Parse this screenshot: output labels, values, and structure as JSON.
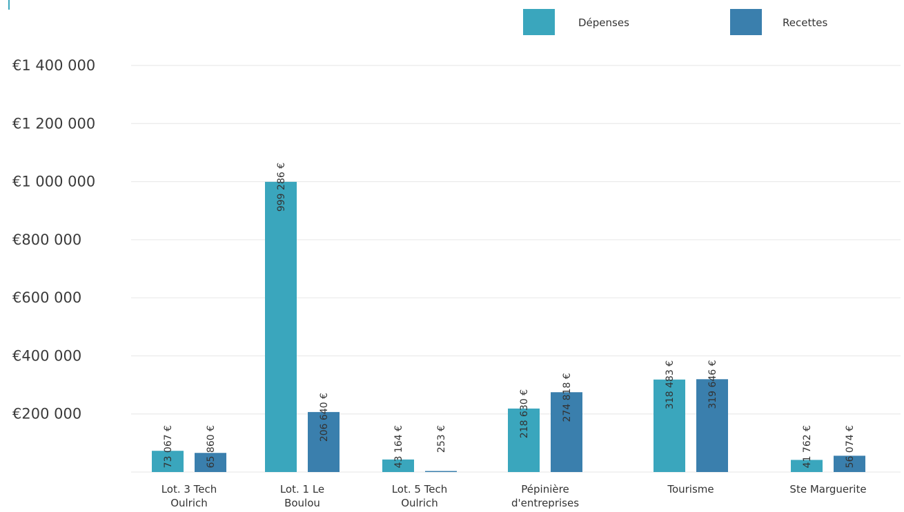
{
  "chart_data": {
    "type": "bar",
    "categories": [
      [
        "Lot. 3 Tech",
        "Oulrich"
      ],
      [
        "Lot. 1  Le",
        "Boulou"
      ],
      [
        "Lot. 5 Tech",
        "Oulrich"
      ],
      [
        "Pépinière",
        "d'entreprises"
      ],
      [
        "Tourisme"
      ],
      [
        "Ste Marguerite"
      ]
    ],
    "series": [
      {
        "name": "Dépenses",
        "color": "#3aa6bd",
        "values": [
          73067,
          999286,
          43164,
          218630,
          318483,
          41762
        ],
        "labels": [
          "73 067 €",
          "999 286 €",
          "43 164  €",
          "218 630 €",
          "318 483 €",
          "41 762 €"
        ]
      },
      {
        "name": "Recettes",
        "color": "#3a7fad",
        "values": [
          65860,
          206640,
          253,
          274818,
          319646,
          56074
        ],
        "labels": [
          "65 860 €",
          "206 640 €",
          "253 €",
          "274 818 €",
          "319 646 €",
          "56 074 €"
        ]
      }
    ],
    "y_ticks": [
      200000,
      400000,
      600000,
      800000,
      1000000,
      1200000,
      1400000
    ],
    "y_tick_labels": [
      "€200 000",
      "€400 000",
      "€600 000",
      "€800 000",
      "€1 000 000",
      "€1 200 000",
      "€1 400 000"
    ],
    "ylim": [
      0,
      1400000
    ],
    "grid": true,
    "legend_position": "top-right"
  }
}
